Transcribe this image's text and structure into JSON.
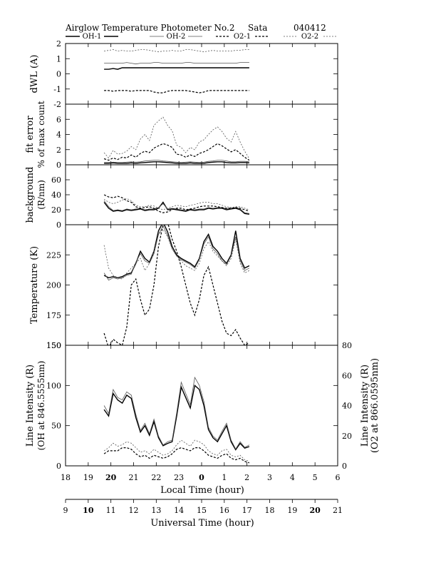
{
  "header": {
    "title": "Airglow Temperature Photometer No.2",
    "site": "Sata",
    "date": "040412"
  },
  "legend": [
    {
      "label": "OH-1",
      "color": "#000000",
      "dash": "",
      "width": 1.4
    },
    {
      "label": "OH-2",
      "color": "#555555",
      "dash": "",
      "width": 0.8
    },
    {
      "label": "O2-1",
      "color": "#000000",
      "dash": "3,2",
      "width": 1.2
    },
    {
      "label": "O2-2",
      "color": "#555555",
      "dash": "2,2",
      "width": 0.8
    }
  ],
  "axes": {
    "x_local": {
      "label": "Local Time (hour)",
      "range": [
        18,
        30
      ],
      "ticks": [
        18,
        19,
        20,
        21,
        22,
        23,
        24,
        25,
        26,
        27,
        28,
        29,
        30
      ],
      "tick_labels": [
        "18",
        "19",
        "20",
        "21",
        "22",
        "23",
        "0",
        "1",
        "2",
        "3",
        "4",
        "5",
        "6"
      ],
      "bold_labels": [
        "20",
        "0"
      ]
    },
    "x_ut": {
      "label": "Universal Time (hour)",
      "range": [
        9,
        21
      ],
      "ticks": [
        9,
        10,
        11,
        12,
        13,
        14,
        15,
        16,
        17,
        18,
        19,
        20,
        21
      ],
      "tick_labels": [
        "9",
        "10",
        "11",
        "12",
        "13",
        "14",
        "15",
        "16",
        "17",
        "18",
        "19",
        "20",
        "21"
      ],
      "bold_labels": [
        "10",
        "20"
      ]
    },
    "right_label": {
      "line1": "Line Intensity (R)",
      "line2": "(O2 at 866.0595nm)"
    }
  },
  "chart_data": [
    {
      "type": "line",
      "panel": "dwl",
      "ylabel": "dWL (A)",
      "ylim": [
        -2,
        2
      ],
      "yticks": [
        2,
        1,
        0,
        -1,
        -2
      ],
      "x_local_hours": [
        19.7,
        19.9,
        20.1,
        20.3,
        20.5,
        20.7,
        20.9,
        21.1,
        21.3,
        21.5,
        21.7,
        21.9,
        22.1,
        22.3,
        22.5,
        22.7,
        22.9,
        23.1,
        23.3,
        23.5,
        23.7,
        23.9,
        24.1,
        24.3,
        24.5,
        24.7,
        24.9,
        25.1,
        25.3,
        25.5,
        25.7,
        25.9,
        26.1
      ],
      "series": [
        {
          "name": "OH-1",
          "values": [
            0.3,
            0.3,
            0.35,
            0.3,
            0.4,
            0.4,
            0.4,
            0.4,
            0.4,
            0.4,
            0.4,
            0.4,
            0.4,
            0.4,
            0.4,
            0.4,
            0.4,
            0.4,
            0.4,
            0.4,
            0.4,
            0.4,
            0.4,
            0.4,
            0.4,
            0.4,
            0.4,
            0.4,
            0.4,
            0.4,
            0.4,
            0.4,
            0.4
          ]
        },
        {
          "name": "OH-2",
          "values": [
            0.7,
            0.7,
            0.7,
            0.7,
            0.7,
            0.75,
            0.7,
            0.65,
            0.7,
            0.7,
            0.7,
            0.75,
            0.75,
            0.7,
            0.7,
            0.7,
            0.7,
            0.7,
            0.75,
            0.75,
            0.7,
            0.7,
            0.7,
            0.7,
            0.7,
            0.7,
            0.7,
            0.7,
            0.7,
            0.7,
            0.75,
            0.75,
            0.75
          ]
        },
        {
          "name": "O2-1",
          "values": [
            -1.1,
            -1.1,
            -1.15,
            -1.1,
            -1.1,
            -1.1,
            -1.15,
            -1.1,
            -1.1,
            -1.1,
            -1.1,
            -1.2,
            -1.25,
            -1.25,
            -1.15,
            -1.1,
            -1.1,
            -1.1,
            -1.1,
            -1.15,
            -1.2,
            -1.25,
            -1.2,
            -1.1,
            -1.1,
            -1.1,
            -1.1,
            -1.1,
            -1.1,
            -1.1,
            -1.1,
            -1.1,
            -1.1
          ]
        },
        {
          "name": "O2-2",
          "values": [
            1.5,
            1.55,
            1.6,
            1.5,
            1.55,
            1.5,
            1.5,
            1.55,
            1.6,
            1.6,
            1.55,
            1.5,
            1.45,
            1.5,
            1.5,
            1.55,
            1.5,
            1.5,
            1.6,
            1.6,
            1.55,
            1.5,
            1.45,
            1.5,
            1.55,
            1.5,
            1.5,
            1.5,
            1.5,
            1.55,
            1.55,
            1.6,
            1.6
          ]
        }
      ]
    },
    {
      "type": "line",
      "panel": "fit_error",
      "ylabel": "fit error",
      "ylabel2": "% of max count",
      "ylim": [
        0,
        8
      ],
      "yticks": [
        6,
        4,
        2,
        0
      ],
      "x_local_hours": [
        19.7,
        19.9,
        20.1,
        20.3,
        20.5,
        20.7,
        20.9,
        21.1,
        21.3,
        21.5,
        21.7,
        21.9,
        22.1,
        22.3,
        22.5,
        22.7,
        22.9,
        23.1,
        23.3,
        23.5,
        23.7,
        23.9,
        24.1,
        24.3,
        24.5,
        24.7,
        24.9,
        25.1,
        25.3,
        25.5,
        25.7,
        25.9,
        26.1
      ],
      "series": [
        {
          "name": "OH-1",
          "values": [
            0.2,
            0.2,
            0.25,
            0.2,
            0.2,
            0.2,
            0.25,
            0.2,
            0.25,
            0.3,
            0.35,
            0.4,
            0.4,
            0.35,
            0.3,
            0.25,
            0.2,
            0.2,
            0.2,
            0.25,
            0.2,
            0.2,
            0.2,
            0.3,
            0.35,
            0.4,
            0.4,
            0.3,
            0.25,
            0.25,
            0.3,
            0.3,
            0.25
          ]
        },
        {
          "name": "OH-2",
          "values": [
            0.3,
            0.3,
            0.35,
            0.3,
            0.3,
            0.35,
            0.4,
            0.35,
            0.4,
            0.5,
            0.55,
            0.6,
            0.6,
            0.5,
            0.45,
            0.4,
            0.35,
            0.3,
            0.35,
            0.4,
            0.35,
            0.3,
            0.35,
            0.45,
            0.5,
            0.6,
            0.6,
            0.5,
            0.4,
            0.4,
            0.45,
            0.45,
            0.4
          ]
        },
        {
          "name": "O2-1",
          "values": [
            0.8,
            0.6,
            0.9,
            0.7,
            1.0,
            0.9,
            1.3,
            1.0,
            1.5,
            1.8,
            1.6,
            2.2,
            2.5,
            2.8,
            2.6,
            2.3,
            1.4,
            1.3,
            1.0,
            1.3,
            1.1,
            1.5,
            1.7,
            2.0,
            2.4,
            2.8,
            2.5,
            2.1,
            1.7,
            2.0,
            1.5,
            1.0,
            0.6
          ]
        },
        {
          "name": "O2-2",
          "values": [
            1.6,
            0.9,
            1.9,
            1.4,
            1.5,
            1.8,
            2.4,
            2.0,
            3.4,
            4.0,
            3.2,
            5.2,
            5.8,
            6.3,
            5.2,
            4.5,
            2.6,
            2.3,
            1.6,
            2.3,
            2.0,
            3.0,
            3.3,
            4.0,
            4.6,
            5.0,
            4.4,
            3.5,
            3.0,
            4.4,
            3.0,
            1.8,
            0.8
          ]
        }
      ]
    },
    {
      "type": "line",
      "panel": "background",
      "ylabel": "background",
      "ylabel2": "(R/nm)",
      "ylim": [
        0,
        80
      ],
      "yticks": [
        60,
        40,
        20,
        0
      ],
      "x_local_hours": [
        19.7,
        19.9,
        20.1,
        20.3,
        20.5,
        20.7,
        20.9,
        21.1,
        21.3,
        21.5,
        21.7,
        21.9,
        22.1,
        22.3,
        22.5,
        22.7,
        22.9,
        23.1,
        23.3,
        23.5,
        23.7,
        23.9,
        24.1,
        24.3,
        24.5,
        24.7,
        24.9,
        25.1,
        25.3,
        25.5,
        25.7,
        25.9,
        26.1
      ],
      "series": [
        {
          "name": "OH-1",
          "values": [
            30,
            22,
            18,
            19,
            18,
            20,
            19,
            20,
            21,
            19,
            20,
            20,
            22,
            30,
            20,
            21,
            20,
            19,
            18,
            20,
            19,
            20,
            20,
            22,
            21,
            22,
            22,
            20,
            21,
            22,
            20,
            15,
            14
          ]
        },
        {
          "name": "OH-2",
          "values": [
            32,
            24,
            19,
            20,
            19,
            21,
            20,
            21,
            22,
            20,
            21,
            21,
            23,
            28,
            21,
            22,
            21,
            20,
            19,
            21,
            20,
            21,
            21,
            23,
            22,
            23,
            23,
            21,
            22,
            23,
            21,
            16,
            15
          ]
        },
        {
          "name": "O2-1",
          "values": [
            40,
            37,
            36,
            38,
            36,
            32,
            30,
            24,
            22,
            23,
            24,
            22,
            18,
            16,
            17,
            20,
            22,
            22,
            20,
            21,
            22,
            24,
            25,
            25,
            25,
            24,
            23,
            22,
            22,
            23,
            22,
            20,
            18
          ]
        },
        {
          "name": "O2-2",
          "values": [
            34,
            30,
            28,
            30,
            33,
            35,
            32,
            26,
            24,
            24,
            26,
            25,
            22,
            20,
            22,
            24,
            26,
            25,
            24,
            26,
            27,
            29,
            30,
            30,
            28,
            28,
            26,
            24,
            23,
            24,
            24,
            22,
            20
          ]
        }
      ]
    },
    {
      "type": "line",
      "panel": "temperature",
      "ylabel": "Temperature (K)",
      "ylim": [
        150,
        250
      ],
      "yticks": [
        225,
        200,
        175,
        150
      ],
      "x_local_hours": [
        19.7,
        19.9,
        20.1,
        20.3,
        20.5,
        20.7,
        20.9,
        21.1,
        21.3,
        21.5,
        21.7,
        21.9,
        22.1,
        22.3,
        22.5,
        22.7,
        22.9,
        23.1,
        23.3,
        23.5,
        23.7,
        23.9,
        24.1,
        24.3,
        24.5,
        24.7,
        24.9,
        25.1,
        25.3,
        25.5,
        25.7,
        25.9,
        26.1
      ],
      "series": [
        {
          "name": "OH-1",
          "values": [
            208,
            206,
            207,
            206,
            207,
            209,
            210,
            218,
            228,
            222,
            219,
            228,
            245,
            252,
            244,
            232,
            225,
            222,
            220,
            218,
            215,
            222,
            236,
            242,
            232,
            228,
            222,
            218,
            225,
            245,
            222,
            214,
            216
          ]
        },
        {
          "name": "OH-2",
          "values": [
            210,
            204,
            206,
            205,
            206,
            208,
            209,
            219,
            226,
            220,
            218,
            226,
            242,
            249,
            241,
            230,
            224,
            221,
            219,
            217,
            214,
            221,
            234,
            240,
            230,
            226,
            220,
            217,
            224,
            240,
            220,
            212,
            214
          ]
        },
        {
          "name": "O2-1",
          "values": [
            160,
            148,
            155,
            152,
            150,
            165,
            200,
            205,
            188,
            175,
            180,
            200,
            232,
            250,
            252,
            238,
            228,
            215,
            200,
            185,
            175,
            188,
            208,
            215,
            200,
            185,
            170,
            160,
            158,
            163,
            156,
            150,
            152
          ]
        },
        {
          "name": "O2-2",
          "values": [
            233,
            214,
            208,
            206,
            205,
            210,
            214,
            218,
            222,
            212,
            218,
            228,
            242,
            246,
            240,
            230,
            224,
            220,
            216,
            214,
            212,
            218,
            230,
            236,
            228,
            224,
            220,
            216,
            222,
            238,
            218,
            210,
            212
          ]
        }
      ]
    },
    {
      "type": "line",
      "panel": "intensity",
      "ylabel": "Line Intensity (R)",
      "ylabel2": "(OH at 846.5555nm)",
      "ylim": [
        0,
        150
      ],
      "yticks": [
        150,
        100,
        50,
        0
      ],
      "y2label": "Line Intensity (R)",
      "y2label2": "(O2 at 866.0595nm)",
      "y2lim": [
        0,
        80
      ],
      "y2ticks": [
        80,
        60,
        40,
        20,
        0
      ],
      "x_local_hours": [
        19.7,
        19.9,
        20.1,
        20.3,
        20.5,
        20.7,
        20.9,
        21.1,
        21.3,
        21.5,
        21.7,
        21.9,
        22.1,
        22.3,
        22.5,
        22.7,
        22.9,
        23.1,
        23.3,
        23.5,
        23.7,
        23.9,
        24.1,
        24.3,
        24.5,
        24.7,
        24.9,
        25.1,
        25.3,
        25.5,
        25.7,
        25.9,
        26.1
      ],
      "series": [
        {
          "name": "OH-1",
          "values": [
            70,
            62,
            90,
            82,
            78,
            88,
            84,
            60,
            42,
            50,
            38,
            55,
            35,
            25,
            28,
            30,
            62,
            98,
            85,
            72,
            100,
            95,
            75,
            45,
            35,
            30,
            40,
            50,
            30,
            20,
            28,
            22,
            24
          ]
        },
        {
          "name": "OH-2",
          "values": [
            75,
            65,
            95,
            85,
            82,
            92,
            88,
            64,
            44,
            53,
            40,
            58,
            37,
            26,
            30,
            32,
            66,
            104,
            90,
            76,
            110,
            100,
            80,
            48,
            37,
            32,
            43,
            53,
            32,
            21,
            30,
            23,
            26
          ]
        },
        {
          "name": "O2-1",
          "values": [
            8,
            10,
            10,
            10,
            12,
            12,
            11,
            8,
            6,
            7,
            5,
            7,
            6,
            5,
            6,
            8,
            11,
            12,
            11,
            10,
            12,
            12,
            10,
            7,
            6,
            5,
            7,
            8,
            5,
            4,
            5,
            3,
            2
          ]
        },
        {
          "name": "O2-2",
          "values": [
            10,
            12,
            15,
            13,
            14,
            16,
            15,
            12,
            9,
            10,
            8,
            11,
            9,
            7,
            8,
            10,
            14,
            17,
            15,
            13,
            17,
            16,
            14,
            10,
            8,
            7,
            10,
            11,
            7,
            6,
            7,
            4,
            3
          ]
        }
      ]
    }
  ]
}
